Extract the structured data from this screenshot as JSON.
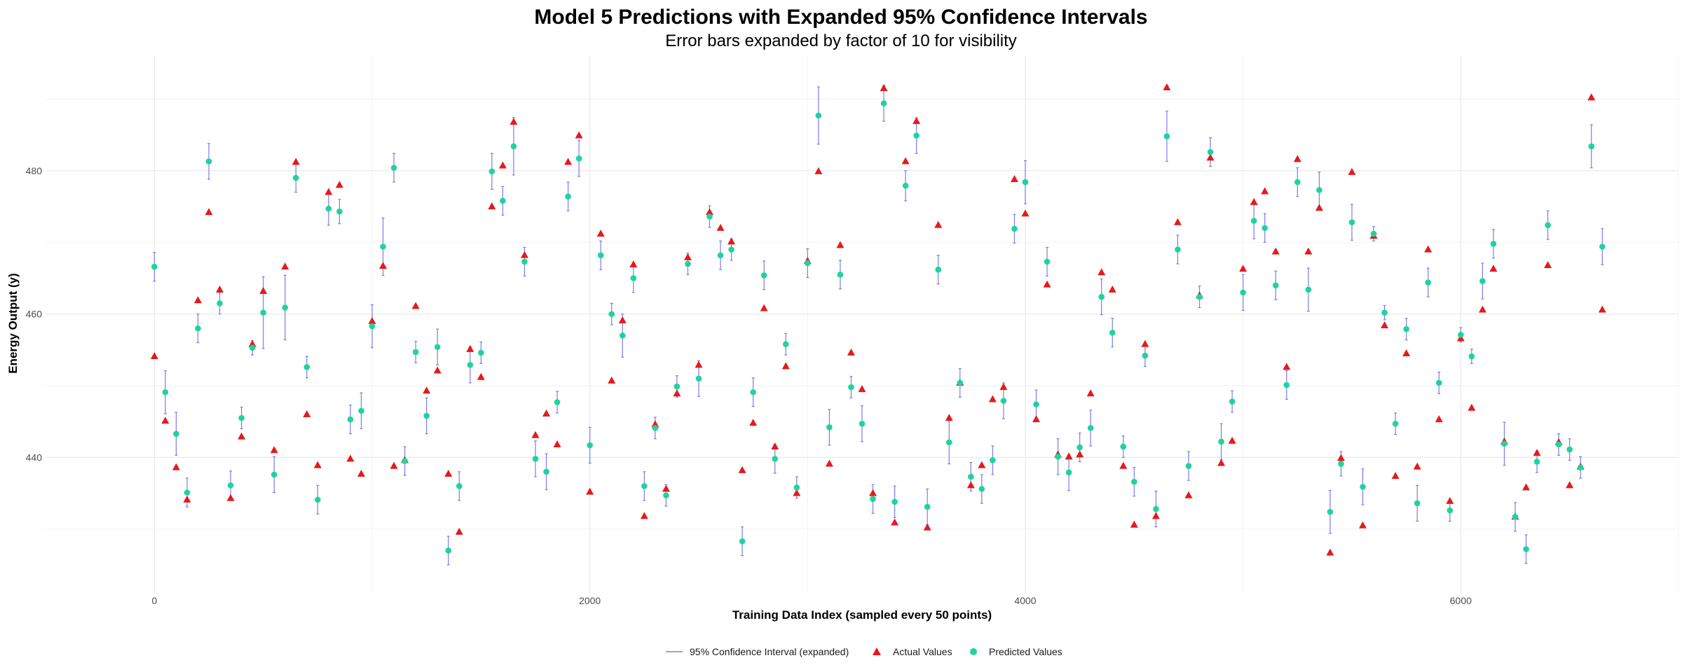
{
  "chart_data": {
    "type": "scatter",
    "title": "Model 5 Predictions with Expanded 95% Confidence Intervals",
    "subtitle": "Error bars expanded by factor of 10 for visibility",
    "xlabel": "Training Data Index (sampled every 50 points)",
    "ylabel": "Energy Output (y)",
    "xlim": [
      -500,
      7000
    ],
    "ylim": [
      421,
      496
    ],
    "x_ticks": [
      0,
      2000,
      4000,
      6000
    ],
    "y_ticks": [
      440,
      460,
      480
    ],
    "grid": true,
    "legend_position": "bottom",
    "colors": {
      "actual": "#e41a1c",
      "predicted": "#1fd49a",
      "ci": "#7b7bf0"
    },
    "legend": [
      {
        "key": "ci",
        "label": "95% Confidence Interval (expanded)"
      },
      {
        "key": "actual",
        "label": "Actual Values"
      },
      {
        "key": "predicted",
        "label": "Predicted Values"
      }
    ],
    "points": [
      [
        0,
        454.1,
        466.6,
        468.6,
        464.6
      ],
      [
        50,
        445.1,
        449.1,
        452.1,
        446.1
      ],
      [
        100,
        438.6,
        443.3,
        446.3,
        440.3
      ],
      [
        150,
        434.1,
        435.1,
        437.1,
        433.1
      ],
      [
        200,
        461.9,
        458.0,
        460.0,
        456.0
      ],
      [
        250,
        474.2,
        481.3,
        483.8,
        478.8
      ],
      [
        300,
        463.4,
        461.5,
        463.0,
        460.0
      ],
      [
        350,
        434.3,
        436.1,
        438.1,
        434.1
      ],
      [
        400,
        442.9,
        445.5,
        447.0,
        444.0
      ],
      [
        450,
        455.8,
        455.3,
        456.3,
        454.3
      ],
      [
        500,
        463.2,
        460.2,
        465.2,
        455.2
      ],
      [
        550,
        441.0,
        437.6,
        440.1,
        435.1
      ],
      [
        600,
        466.6,
        460.9,
        465.4,
        456.4
      ],
      [
        650,
        481.2,
        479.0,
        481.0,
        477.0
      ],
      [
        700,
        446.0,
        452.6,
        454.1,
        451.1
      ],
      [
        750,
        438.9,
        434.1,
        436.1,
        432.1
      ],
      [
        800,
        477.0,
        474.7,
        477.0,
        472.4
      ],
      [
        850,
        478.0,
        474.3,
        476.0,
        472.6
      ],
      [
        900,
        439.8,
        445.3,
        447.3,
        443.3
      ],
      [
        950,
        437.7,
        446.5,
        449.0,
        444.0
      ],
      [
        1000,
        459.0,
        458.3,
        461.3,
        455.3
      ],
      [
        1050,
        466.7,
        469.4,
        473.4,
        465.4
      ],
      [
        1100,
        438.8,
        480.4,
        482.4,
        478.4
      ],
      [
        1150,
        439.6,
        439.5,
        441.5,
        437.5
      ],
      [
        1200,
        461.1,
        454.7,
        456.2,
        453.2
      ],
      [
        1250,
        449.3,
        445.8,
        448.3,
        443.3
      ],
      [
        1300,
        452.1,
        455.4,
        457.9,
        452.9
      ],
      [
        1350,
        437.7,
        427.0,
        429.0,
        425.0
      ],
      [
        1400,
        429.6,
        436.0,
        438.0,
        434.0
      ],
      [
        1450,
        455.1,
        452.9,
        455.4,
        450.4
      ],
      [
        1500,
        451.2,
        454.6,
        456.1,
        453.1
      ],
      [
        1550,
        475.0,
        479.9,
        482.4,
        477.4
      ],
      [
        1600,
        480.7,
        475.8,
        477.8,
        473.8
      ],
      [
        1650,
        486.8,
        483.4,
        487.4,
        479.4
      ],
      [
        1700,
        468.2,
        467.3,
        469.3,
        465.3
      ],
      [
        1750,
        443.1,
        439.8,
        442.3,
        437.3
      ],
      [
        1800,
        446.1,
        438.0,
        440.5,
        435.5
      ],
      [
        1850,
        441.8,
        447.7,
        449.2,
        446.2
      ],
      [
        1900,
        481.2,
        476.4,
        478.4,
        474.4
      ],
      [
        1950,
        484.9,
        481.7,
        484.2,
        479.2
      ],
      [
        2000,
        435.2,
        441.7,
        444.2,
        439.2
      ],
      [
        2050,
        471.2,
        468.2,
        470.2,
        466.2
      ],
      [
        2100,
        450.7,
        460.0,
        461.5,
        458.5
      ],
      [
        2150,
        459.1,
        457.0,
        460.0,
        454.0
      ],
      [
        2200,
        466.9,
        465.0,
        467.0,
        463.0
      ],
      [
        2250,
        431.8,
        436.0,
        438.0,
        434.0
      ],
      [
        2300,
        444.6,
        444.1,
        445.6,
        442.6
      ],
      [
        2350,
        435.6,
        434.7,
        436.2,
        433.2
      ],
      [
        2400,
        448.9,
        449.9,
        451.4,
        448.4
      ],
      [
        2450,
        467.9,
        467.0,
        468.5,
        465.5
      ],
      [
        2500,
        452.9,
        451.0,
        453.5,
        448.5
      ],
      [
        2550,
        474.2,
        473.6,
        475.1,
        472.1
      ],
      [
        2600,
        472.0,
        468.2,
        470.2,
        466.2
      ],
      [
        2650,
        470.1,
        469.0,
        470.5,
        467.5
      ],
      [
        2700,
        438.2,
        428.3,
        430.3,
        426.3
      ],
      [
        2750,
        444.8,
        449.1,
        451.1,
        447.1
      ],
      [
        2800,
        460.8,
        465.4,
        467.4,
        463.4
      ],
      [
        2850,
        441.5,
        439.8,
        441.8,
        437.8
      ],
      [
        2900,
        452.7,
        455.8,
        457.3,
        454.3
      ],
      [
        2950,
        435.0,
        435.8,
        437.3,
        434.3
      ],
      [
        3000,
        467.4,
        467.1,
        469.1,
        465.1
      ],
      [
        3050,
        479.9,
        487.7,
        491.7,
        483.7
      ],
      [
        3100,
        439.1,
        444.2,
        446.7,
        441.7
      ],
      [
        3150,
        469.6,
        465.5,
        467.5,
        463.5
      ],
      [
        3200,
        454.6,
        449.8,
        451.3,
        448.3
      ],
      [
        3250,
        449.5,
        444.7,
        447.2,
        442.2
      ],
      [
        3300,
        435.0,
        434.2,
        436.2,
        432.2
      ],
      [
        3350,
        491.5,
        489.4,
        491.9,
        486.9
      ],
      [
        3400,
        430.9,
        433.8,
        436.0,
        431.6
      ],
      [
        3450,
        481.3,
        477.9,
        480.0,
        475.8
      ],
      [
        3500,
        486.9,
        484.9,
        487.4,
        482.4
      ],
      [
        3550,
        430.2,
        433.1,
        435.6,
        430.6
      ],
      [
        3600,
        472.4,
        466.2,
        468.2,
        464.2
      ],
      [
        3650,
        445.5,
        442.1,
        445.1,
        439.1
      ],
      [
        3700,
        450.4,
        450.4,
        452.4,
        448.4
      ],
      [
        3750,
        436.1,
        437.3,
        439.3,
        435.3
      ],
      [
        3800,
        438.9,
        435.6,
        437.6,
        433.6
      ],
      [
        3850,
        448.1,
        439.6,
        441.6,
        437.6
      ],
      [
        3900,
        449.8,
        447.9,
        450.4,
        445.4
      ],
      [
        3950,
        478.8,
        471.9,
        473.9,
        469.9
      ],
      [
        4000,
        474.0,
        478.4,
        481.4,
        475.4
      ],
      [
        4050,
        445.3,
        447.4,
        449.4,
        445.4
      ],
      [
        4100,
        464.1,
        467.3,
        469.3,
        465.3
      ],
      [
        4150,
        440.4,
        440.1,
        442.6,
        437.6
      ],
      [
        4200,
        440.1,
        437.9,
        440.4,
        435.4
      ],
      [
        4250,
        440.4,
        441.4,
        443.4,
        439.4
      ],
      [
        4300,
        448.9,
        444.1,
        446.6,
        441.6
      ],
      [
        4350,
        465.8,
        462.4,
        464.9,
        459.9
      ],
      [
        4400,
        463.4,
        457.4,
        459.4,
        455.4
      ],
      [
        4450,
        438.8,
        441.5,
        443.0,
        440.0
      ],
      [
        4500,
        430.6,
        436.6,
        438.6,
        434.6
      ],
      [
        4550,
        455.8,
        454.2,
        455.7,
        452.7
      ],
      [
        4600,
        431.8,
        432.8,
        435.3,
        430.3
      ],
      [
        4650,
        491.6,
        484.8,
        488.3,
        481.3
      ],
      [
        4700,
        472.8,
        469.0,
        471.0,
        467.0
      ],
      [
        4750,
        434.7,
        438.8,
        440.8,
        436.8
      ],
      [
        4800,
        462.6,
        462.4,
        463.9,
        460.9
      ],
      [
        4850,
        481.8,
        482.6,
        484.6,
        480.6
      ],
      [
        4900,
        439.2,
        442.2,
        444.7,
        439.7
      ],
      [
        4950,
        442.3,
        447.8,
        449.3,
        446.3
      ],
      [
        5000,
        466.3,
        463.0,
        465.5,
        460.5
      ],
      [
        5050,
        475.6,
        473.0,
        475.5,
        470.5
      ],
      [
        5100,
        477.1,
        472.0,
        474.0,
        470.0
      ],
      [
        5150,
        468.7,
        464.0,
        466.0,
        462.0
      ],
      [
        5200,
        452.6,
        450.1,
        452.1,
        448.1
      ],
      [
        5250,
        481.6,
        478.4,
        480.4,
        476.4
      ],
      [
        5300,
        468.7,
        463.4,
        466.4,
        460.4
      ],
      [
        5350,
        474.8,
        477.3,
        479.8,
        474.8
      ],
      [
        5400,
        426.7,
        432.4,
        435.4,
        429.4
      ],
      [
        5450,
        439.9,
        439.1,
        440.8,
        437.4
      ],
      [
        5500,
        479.8,
        472.8,
        475.3,
        470.3
      ],
      [
        5550,
        430.5,
        435.9,
        438.4,
        433.4
      ],
      [
        5600,
        470.9,
        471.2,
        472.2,
        470.2
      ],
      [
        5650,
        458.4,
        460.2,
        461.2,
        459.2
      ],
      [
        5700,
        437.4,
        444.7,
        446.2,
        443.2
      ],
      [
        5750,
        454.5,
        457.9,
        459.4,
        456.4
      ],
      [
        5800,
        438.7,
        433.6,
        436.1,
        431.1
      ],
      [
        5850,
        469.0,
        464.4,
        466.4,
        462.4
      ],
      [
        5900,
        445.3,
        450.4,
        451.9,
        448.9
      ],
      [
        5950,
        433.9,
        432.6,
        434.1,
        431.1
      ],
      [
        6000,
        456.6,
        457.1,
        458.1,
        456.1
      ],
      [
        6050,
        446.9,
        454.1,
        455.1,
        453.1
      ],
      [
        6100,
        460.6,
        464.6,
        467.1,
        462.1
      ],
      [
        6150,
        466.3,
        469.8,
        471.8,
        467.8
      ],
      [
        6200,
        442.2,
        441.9,
        444.9,
        438.9
      ],
      [
        6250,
        431.7,
        431.7,
        433.7,
        429.7
      ],
      [
        6300,
        435.8,
        427.2,
        429.2,
        425.2
      ],
      [
        6350,
        440.6,
        439.4,
        440.9,
        437.9
      ],
      [
        6400,
        466.8,
        472.4,
        474.4,
        470.4
      ],
      [
        6450,
        442.1,
        441.8,
        443.3,
        440.3
      ],
      [
        6500,
        436.1,
        441.1,
        442.6,
        439.6
      ],
      [
        6550,
        438.7,
        438.6,
        440.1,
        437.1
      ],
      [
        6600,
        490.2,
        483.4,
        486.4,
        480.4
      ],
      [
        6650,
        460.6,
        469.4,
        471.9,
        466.9
      ]
    ]
  }
}
